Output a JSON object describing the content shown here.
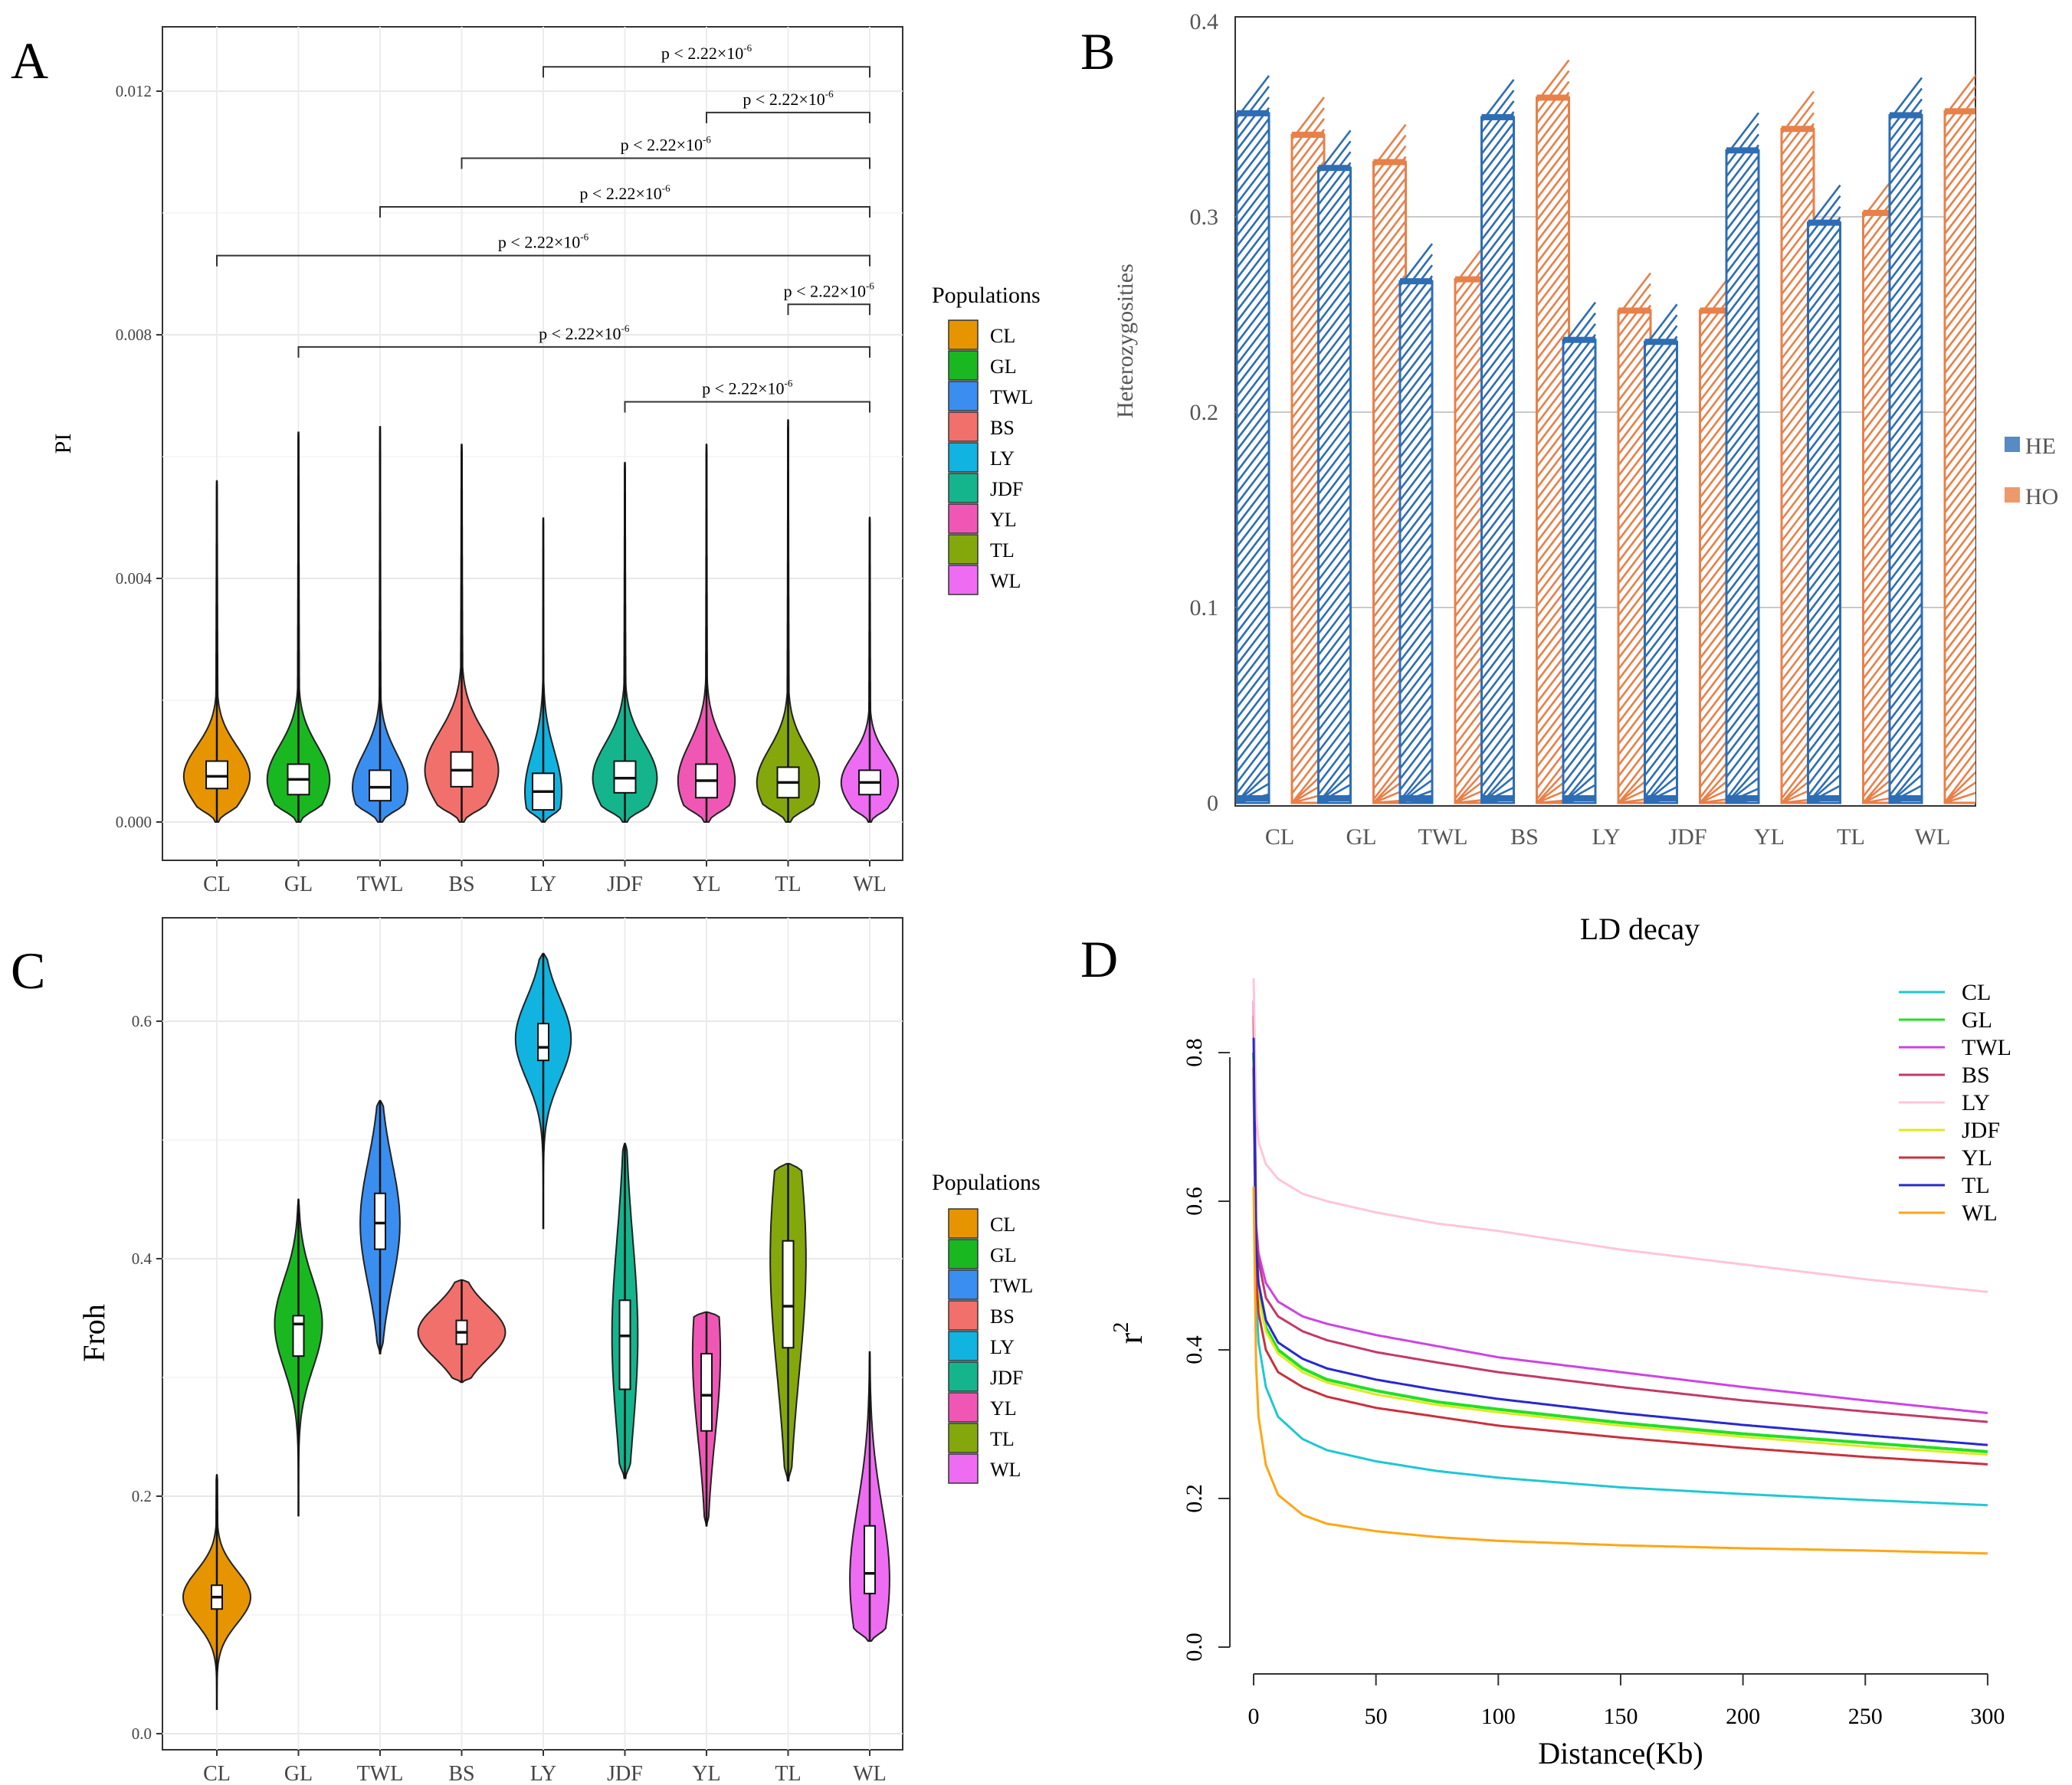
{
  "panel_letters": [
    "A",
    "B",
    "C",
    "D"
  ],
  "chart_data": [
    {
      "panel": "A",
      "type": "violin",
      "ylabel": "PI",
      "ylim": [
        0,
        0.0129
      ],
      "yticks": [
        0,
        0.004,
        0.008,
        0.012
      ],
      "ytick_labels": [
        "0.000",
        "0.004",
        "0.008",
        "0.012"
      ],
      "categories": [
        "CL",
        "GL",
        "TWL",
        "BS",
        "LY",
        "JDF",
        "YL",
        "TL",
        "WL"
      ],
      "colors": [
        "#E69500",
        "#19B821",
        "#3A8EF0",
        "#F2706C",
        "#11B3E0",
        "#14B58C",
        "#F057B5",
        "#84A80B",
        "#EE6CF2"
      ],
      "legend_title": "Populations",
      "series": [
        {
          "name": "CL",
          "min": 0,
          "q1": 0.00055,
          "median": 0.00075,
          "q3": 0.001,
          "max": 0.0056,
          "max_width": 0.00072
        },
        {
          "name": "GL",
          "min": 0,
          "q1": 0.00045,
          "median": 0.0007,
          "q3": 0.00095,
          "max": 0.0064,
          "max_width": 0.00068
        },
        {
          "name": "TWL",
          "min": 0,
          "q1": 0.00035,
          "median": 0.00057,
          "q3": 0.00085,
          "max": 0.0065,
          "max_width": 0.0006
        },
        {
          "name": "BS",
          "min": 0,
          "q1": 0.00058,
          "median": 0.00085,
          "q3": 0.00115,
          "max": 0.0062,
          "max_width": 0.0008
        },
        {
          "name": "LY",
          "min": 0,
          "q1": 0.0002,
          "median": 0.0005,
          "q3": 0.0008,
          "max": 0.005,
          "max_width": 0.0004
        },
        {
          "name": "JDF",
          "min": 0,
          "q1": 0.00048,
          "median": 0.00072,
          "q3": 0.001,
          "max": 0.0059,
          "max_width": 0.0007
        },
        {
          "name": "YL",
          "min": 0,
          "q1": 0.0004,
          "median": 0.00068,
          "q3": 0.00095,
          "max": 0.0062,
          "max_width": 0.00062
        },
        {
          "name": "TL",
          "min": 0,
          "q1": 0.0004,
          "median": 0.00065,
          "q3": 0.0009,
          "max": 0.0066,
          "max_width": 0.00068
        },
        {
          "name": "WL",
          "min": 0,
          "q1": 0.00045,
          "median": 0.00065,
          "q3": 0.00085,
          "max": 0.005,
          "max_width": 0.00062
        }
      ],
      "comparisons": [
        {
          "from": "LY",
          "to": "WL",
          "y": 0.0124,
          "label": "p < 2.22×10",
          "exp": "-6"
        },
        {
          "from": "YL",
          "to": "WL",
          "y": 0.01165,
          "label": "p < 2.22×10",
          "exp": "-6"
        },
        {
          "from": "BS",
          "to": "WL",
          "y": 0.0109,
          "label": "p < 2.22×10",
          "exp": "-6"
        },
        {
          "from": "TWL",
          "to": "WL",
          "y": 0.0101,
          "label": "p < 2.22×10",
          "exp": "-6"
        },
        {
          "from": "CL",
          "to": "WL",
          "y": 0.0093,
          "label": "p < 2.22×10",
          "exp": "-6"
        },
        {
          "from": "TL",
          "to": "WL",
          "y": 0.0085,
          "label": "p < 2.22×10",
          "exp": "-6"
        },
        {
          "from": "GL",
          "to": "WL",
          "y": 0.0078,
          "label": "p < 2.22×10",
          "exp": "-6"
        },
        {
          "from": "JDF",
          "to": "WL",
          "y": 0.0069,
          "label": "p < 2.22×10",
          "exp": "-6"
        }
      ]
    },
    {
      "panel": "B",
      "type": "bar",
      "ylabel": "Heterozygosities",
      "ylim": [
        0,
        0.4
      ],
      "yticks": [
        0,
        0.1,
        0.2,
        0.3,
        0.4
      ],
      "ytick_labels": [
        "0",
        "0.1",
        "0.2",
        "0.3",
        "0.4"
      ],
      "categories": [
        "CL",
        "GL",
        "TWL",
        "BS",
        "LY",
        "JDF",
        "YL",
        "TL",
        "WL"
      ],
      "series": [
        {
          "name": "HE",
          "color": "#2E6DB4",
          "values": [
            0.353,
            0.325,
            0.267,
            0.351,
            0.237,
            0.236,
            0.334,
            0.297,
            0.352
          ]
        },
        {
          "name": "HO",
          "color": "#E8804A",
          "values": [
            0.342,
            0.328,
            0.268,
            0.361,
            0.252,
            0.252,
            0.345,
            0.302,
            0.354
          ]
        }
      ]
    },
    {
      "panel": "C",
      "type": "violin",
      "ylabel": "Froh",
      "ylim": [
        -0.01,
        0.68
      ],
      "yticks": [
        0,
        0.2,
        0.4,
        0.6
      ],
      "ytick_labels": [
        "0.0",
        "0.2",
        "0.4",
        "0.6"
      ],
      "categories": [
        "CL",
        "GL",
        "TWL",
        "BS",
        "LY",
        "JDF",
        "YL",
        "TL",
        "WL"
      ],
      "colors": [
        "#E69500",
        "#19B821",
        "#3A8EF0",
        "#F2706C",
        "#11B3E0",
        "#14B58C",
        "#F057B5",
        "#84A80B",
        "#EE6CF2"
      ],
      "legend_title": "Populations",
      "series": [
        {
          "name": "CL",
          "min": 0.02,
          "q1": 0.105,
          "median": 0.115,
          "q3": 0.125,
          "max": 0.218,
          "peak": 0.115,
          "max_width": 0.34
        },
        {
          "name": "GL",
          "min": 0.183,
          "q1": 0.318,
          "median": 0.345,
          "q3": 0.352,
          "max": 0.45,
          "peak": 0.345,
          "max_width": 0.24
        },
        {
          "name": "TWL",
          "min": 0.32,
          "q1": 0.408,
          "median": 0.43,
          "q3": 0.455,
          "max": 0.533,
          "peak": 0.43,
          "max_width": 0.2
        },
        {
          "name": "BS",
          "min": 0.296,
          "q1": 0.328,
          "median": 0.338,
          "q3": 0.348,
          "max": 0.382,
          "peak": 0.338,
          "max_width": 0.44
        },
        {
          "name": "LY",
          "min": 0.425,
          "q1": 0.567,
          "median": 0.578,
          "q3": 0.598,
          "max": 0.657,
          "peak": 0.585,
          "max_width": 0.28
        },
        {
          "name": "JDF",
          "min": 0.215,
          "q1": 0.29,
          "median": 0.335,
          "q3": 0.365,
          "max": 0.497,
          "peak": 0.335,
          "max_width": 0.13
        },
        {
          "name": "YL",
          "min": 0.175,
          "q1": 0.255,
          "median": 0.285,
          "q3": 0.32,
          "max": 0.355,
          "peak": 0.32,
          "max_width": 0.14
        },
        {
          "name": "TL",
          "min": 0.213,
          "q1": 0.325,
          "median": 0.36,
          "q3": 0.415,
          "max": 0.48,
          "peak": 0.4,
          "max_width": 0.18
        },
        {
          "name": "WL",
          "min": 0.078,
          "q1": 0.118,
          "median": 0.135,
          "q3": 0.175,
          "max": 0.322,
          "peak": 0.13,
          "max_width": 0.2
        }
      ]
    },
    {
      "panel": "D",
      "type": "line",
      "title": "LD decay",
      "xlabel": "Distance(Kb)",
      "ylabel": "r",
      "ylabel_sup": "2",
      "xlim": [
        0,
        300
      ],
      "ylim": [
        0,
        0.9
      ],
      "xticks": [
        0,
        50,
        100,
        150,
        200,
        250,
        300
      ],
      "xtick_labels": [
        "0",
        "50",
        "100",
        "150",
        "200",
        "250",
        "300"
      ],
      "yticks": [
        0,
        0.2,
        0.4,
        0.6,
        0.8
      ],
      "ytick_labels": [
        "0.0",
        "0.2",
        "0.4",
        "0.6",
        "0.8"
      ],
      "x": [
        0,
        1,
        2,
        5,
        10,
        20,
        30,
        50,
        75,
        100,
        150,
        200,
        250,
        300
      ],
      "series": [
        {
          "name": "CL",
          "color": "#1EC8D2",
          "values": [
            0.76,
            0.48,
            0.41,
            0.35,
            0.31,
            0.28,
            0.265,
            0.25,
            0.237,
            0.228,
            0.215,
            0.206,
            0.198,
            0.191
          ]
        },
        {
          "name": "GL",
          "color": "#22E022",
          "values": [
            0.8,
            0.53,
            0.48,
            0.43,
            0.4,
            0.375,
            0.36,
            0.345,
            0.33,
            0.32,
            0.302,
            0.287,
            0.275,
            0.263
          ]
        },
        {
          "name": "TWL",
          "color": "#CC44E6",
          "values": [
            0.87,
            0.57,
            0.53,
            0.49,
            0.465,
            0.445,
            0.435,
            0.42,
            0.405,
            0.39,
            0.37,
            0.35,
            0.332,
            0.315
          ]
        },
        {
          "name": "BS",
          "color": "#C23A6A",
          "values": [
            0.85,
            0.56,
            0.52,
            0.47,
            0.445,
            0.425,
            0.413,
            0.397,
            0.383,
            0.37,
            0.35,
            0.332,
            0.317,
            0.303
          ]
        },
        {
          "name": "LY",
          "color": "#FFC6D6",
          "values": [
            0.9,
            0.72,
            0.68,
            0.65,
            0.63,
            0.61,
            0.6,
            0.585,
            0.57,
            0.56,
            0.535,
            0.515,
            0.495,
            0.478
          ]
        },
        {
          "name": "JDF",
          "color": "#E0E820",
          "values": [
            0.79,
            0.52,
            0.47,
            0.425,
            0.395,
            0.37,
            0.356,
            0.34,
            0.326,
            0.316,
            0.298,
            0.283,
            0.27,
            0.259
          ]
        },
        {
          "name": "YL",
          "color": "#C8323C",
          "values": [
            0.78,
            0.5,
            0.45,
            0.4,
            0.37,
            0.35,
            0.337,
            0.322,
            0.31,
            0.298,
            0.282,
            0.268,
            0.256,
            0.246
          ]
        },
        {
          "name": "TL",
          "color": "#2828D2",
          "values": [
            0.82,
            0.54,
            0.49,
            0.44,
            0.41,
            0.388,
            0.375,
            0.36,
            0.346,
            0.334,
            0.315,
            0.299,
            0.285,
            0.272
          ]
        },
        {
          "name": "WL",
          "color": "#FFA614",
          "values": [
            0.62,
            0.38,
            0.31,
            0.245,
            0.205,
            0.178,
            0.166,
            0.156,
            0.148,
            0.143,
            0.137,
            0.133,
            0.13,
            0.126
          ]
        }
      ]
    }
  ]
}
